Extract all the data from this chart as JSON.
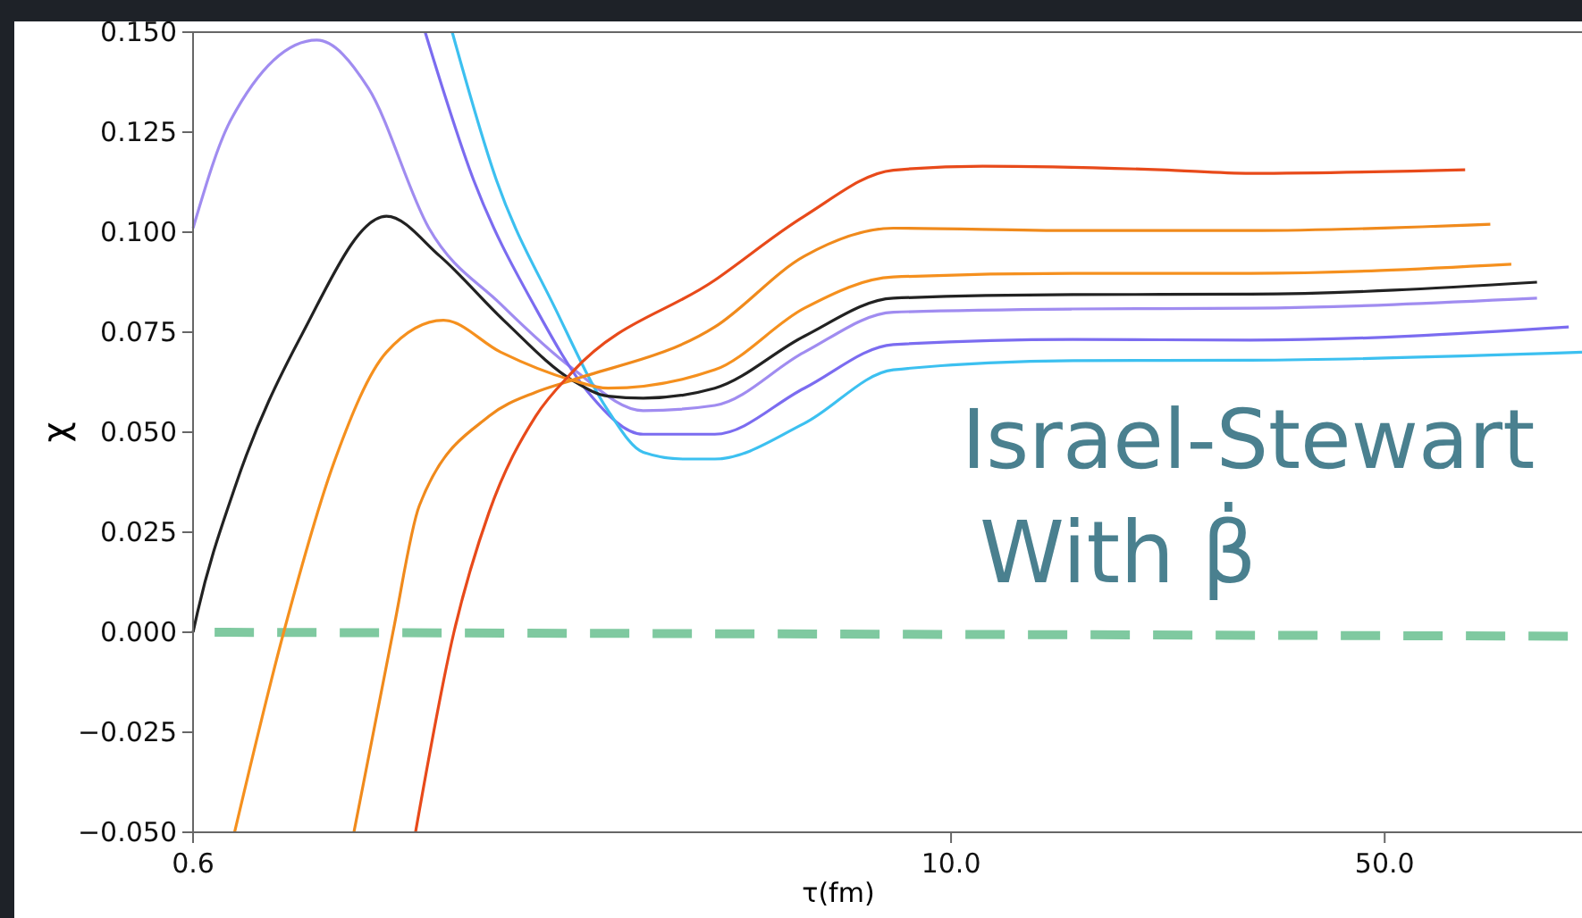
{
  "chart_data": {
    "type": "line",
    "xlabel": "τ(fm)",
    "ylabel": "χ",
    "log": "x",
    "grid": false,
    "marker": "none",
    "xlim": [
      0.6,
      104
    ],
    "xticks": [
      0.6,
      {
        "value": 10,
        "label": "10.0"
      },
      {
        "value": 50,
        "label": "50.0"
      }
    ],
    "ylim": [
      -0.05,
      0.15
    ],
    "yticks": [
      {
        "value": -0.05,
        "label": "−0.050"
      },
      {
        "value": -0.025,
        "label": "−0.025"
      },
      {
        "value": 0,
        "label": "0.000"
      },
      {
        "value": 0.025,
        "label": "0.025"
      },
      {
        "value": 0.05,
        "label": "0.050"
      },
      {
        "value": 0.075,
        "label": "0.075"
      },
      {
        "value": 0.1,
        "label": "0.100"
      },
      {
        "value": 0.125,
        "label": "0.125"
      },
      {
        "value": 0.15,
        "label": "0.150"
      }
    ],
    "annotations": [
      {
        "text": "Israel-Stewart\nWith β̇"
      }
    ],
    "series": [
      {
        "color": "#7fc9a0",
        "line_style": "dashed",
        "x": [
          0.65,
          104
        ],
        "values": [
          0.0,
          -0.001
        ]
      },
      {
        "color": "#a08cf0",
        "x": [
          0.6,
          0.69,
          0.95,
          1.15,
          1.44,
          1.88,
          2.45,
          3.19,
          4.16,
          5.8,
          8.07,
          15.7,
          30.4,
          88
        ],
        "values": [
          0.101,
          0.128,
          0.148,
          0.136,
          0.101,
          0.082,
          0.066,
          0.0554,
          0.0567,
          0.07,
          0.08,
          0.0808,
          0.081,
          0.0835
        ]
      },
      {
        "color": "#7b6cf0",
        "x": [
          1.42,
          1.7,
          2.14,
          2.6,
          3.19,
          3.6,
          4.16,
          5.8,
          8.07,
          15.7,
          30.4,
          99
        ],
        "values": [
          0.15,
          0.113,
          0.081,
          0.06,
          0.0495,
          0.0495,
          0.0495,
          0.061,
          0.0719,
          0.0732,
          0.073,
          0.0763
        ]
      },
      {
        "color": "#3cc0f0",
        "x": [
          1.57,
          1.85,
          2.3,
          2.8,
          3.19,
          3.7,
          4.16,
          5.8,
          8.07,
          15.7,
          30.4,
          104
        ],
        "values": [
          0.15,
          0.113,
          0.081,
          0.0554,
          0.045,
          0.0433,
          0.0433,
          0.0522,
          0.0656,
          0.0679,
          0.068,
          0.07
        ]
      },
      {
        "color": "#222222",
        "x": [
          0.6,
          0.61,
          0.7,
          0.9,
          1.23,
          1.5,
          1.9,
          2.45,
          2.8,
          3.19,
          4.16,
          5.8,
          8.07,
          15.7,
          30.4,
          88
        ],
        "values": [
          0.0,
          0.005,
          0.036,
          0.0746,
          0.104,
          0.094,
          0.078,
          0.063,
          0.059,
          0.0585,
          0.061,
          0.074,
          0.0835,
          0.0844,
          0.0845,
          0.0875
        ]
      },
      {
        "color": "#f5901e",
        "x": [
          0.7,
          0.84,
          1.01,
          1.23,
          1.52,
          1.88,
          2.45,
          2.8,
          4.16,
          5.8,
          8.07,
          15.7,
          30.4,
          80
        ],
        "values": [
          -0.05,
          0.0,
          0.042,
          0.07,
          0.078,
          0.07,
          0.063,
          0.061,
          0.0656,
          0.081,
          0.0888,
          0.0897,
          0.0897,
          0.092
        ]
      },
      {
        "color": "#f08a1c",
        "x": [
          1.09,
          1.26,
          1.39,
          1.8,
          2.14,
          2.45,
          4.16,
          5.8,
          8.07,
          15.7,
          30.4,
          74
        ],
        "values": [
          -0.05,
          0.0,
          0.0317,
          0.054,
          0.06,
          0.063,
          0.0763,
          0.094,
          0.101,
          0.1004,
          0.1004,
          0.102
        ]
      },
      {
        "color": "#e84a1a",
        "x": [
          1.37,
          1.58,
          1.8,
          2.14,
          2.45,
          4.16,
          5.8,
          8.07,
          11.25,
          21.8,
          30.4,
          67.4
        ],
        "values": [
          -0.05,
          0.0,
          0.03,
          0.054,
          0.065,
          0.088,
          0.104,
          0.1155,
          0.1165,
          0.1156,
          0.1147,
          0.1156
        ]
      }
    ]
  }
}
